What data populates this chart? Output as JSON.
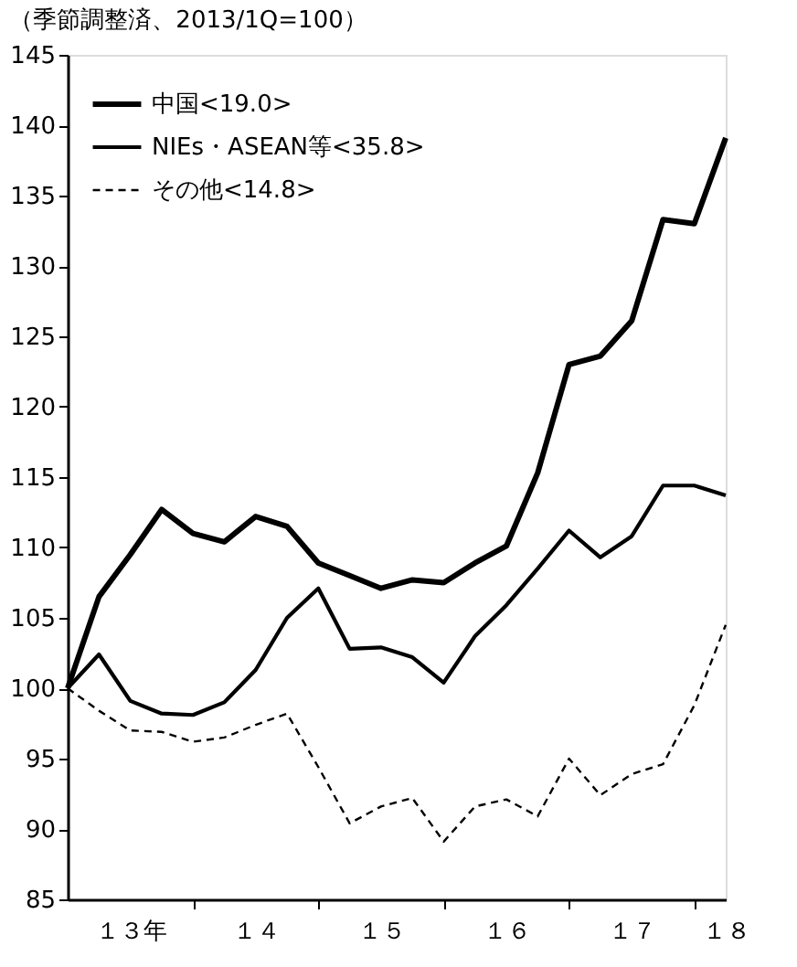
{
  "chart_data": {
    "type": "line",
    "subtitle": "（季節調整済、2013/1Q=100）",
    "categories": [
      null,
      null,
      "１３年",
      null,
      null,
      null,
      "１４",
      null,
      null,
      null,
      "１５",
      null,
      null,
      null,
      "１６",
      null,
      null,
      null,
      "１７",
      null,
      null,
      "１８"
    ],
    "series": [
      {
        "name": "中国<19.0>",
        "color": "#000000",
        "line_style": "solid",
        "values": [
          100,
          106.5,
          109.5,
          112.7,
          111.0,
          110.4,
          112.2,
          111.5,
          108.9,
          108.0,
          107.1,
          107.7,
          107.5,
          108.9,
          110.1,
          115.3,
          123.0,
          123.6,
          126.1,
          133.3,
          133.0,
          139.1
        ]
      },
      {
        "name": "NIEs・ASEAN等<35.8>",
        "color": "#000000",
        "line_style": "solid",
        "values": [
          100,
          102.4,
          99.1,
          98.2,
          98.1,
          99.0,
          101.3,
          105.0,
          107.1,
          102.8,
          102.9,
          102.2,
          100.4,
          103.7,
          105.9,
          108.5,
          111.2,
          109.3,
          110.8,
          114.4,
          114.4,
          113.7
        ]
      },
      {
        "name": "その他<14.8>",
        "color": "#000000",
        "line_style": "dashed",
        "values": [
          100,
          98.4,
          97.0,
          96.9,
          96.2,
          96.5,
          97.4,
          98.2,
          94.4,
          90.4,
          91.6,
          92.2,
          89.1,
          91.6,
          92.1,
          90.9,
          95.0,
          92.4,
          93.9,
          94.6,
          98.8,
          104.5
        ]
      }
    ],
    "ylim": [
      85,
      145
    ],
    "yticks": [
      85,
      90,
      95,
      100,
      105,
      110,
      115,
      120,
      125,
      130,
      135,
      140,
      145
    ],
    "grid": false,
    "legend": "top left"
  }
}
